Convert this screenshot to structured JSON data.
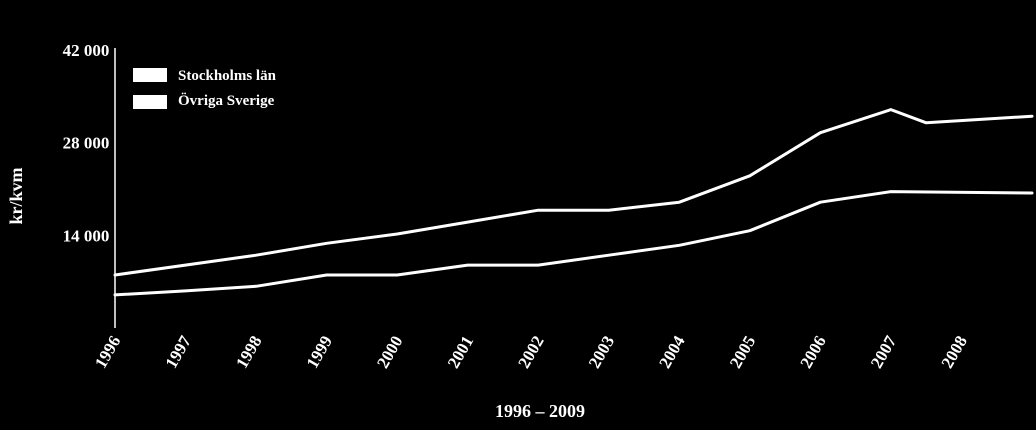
{
  "chart_data": {
    "type": "line",
    "title": "",
    "xlabel": "1996 – 2009",
    "ylabel": "kr/kvm",
    "x_tick_labels": [
      "1996",
      "1997",
      "1998",
      "1999",
      "2000",
      "2001",
      "2002",
      "2003",
      "2004",
      "2005",
      "2006",
      "2007",
      "2008"
    ],
    "y_tick_labels": [
      "42 000",
      "28 000",
      "14 000"
    ],
    "y_ticks": [
      14000,
      28000,
      42000
    ],
    "x_range": [
      1996,
      2009
    ],
    "ylim": [
      0,
      42000
    ],
    "grid": false,
    "legend_position": "top-left",
    "line_color": "#ffffff",
    "background_color": "#000000",
    "series": [
      {
        "name": "Stockholms län",
        "x": [
          1996,
          1998,
          1999,
          2000,
          2001,
          2002,
          2003,
          2004,
          2005,
          2006,
          2007,
          2007.5,
          2009
        ],
        "values": [
          8000,
          11000,
          12800,
          14200,
          16000,
          17800,
          17800,
          19000,
          23000,
          29500,
          33000,
          31000,
          32000
        ]
      },
      {
        "name": "Övriga Sverige",
        "x": [
          1996,
          1997,
          1998,
          1999,
          2000,
          2001,
          2002,
          2003,
          2004,
          2005,
          2006,
          2007,
          2009
        ],
        "values": [
          5000,
          5600,
          6300,
          8000,
          8000,
          9500,
          9500,
          11000,
          12500,
          14700,
          19000,
          20600,
          20400
        ]
      }
    ]
  }
}
